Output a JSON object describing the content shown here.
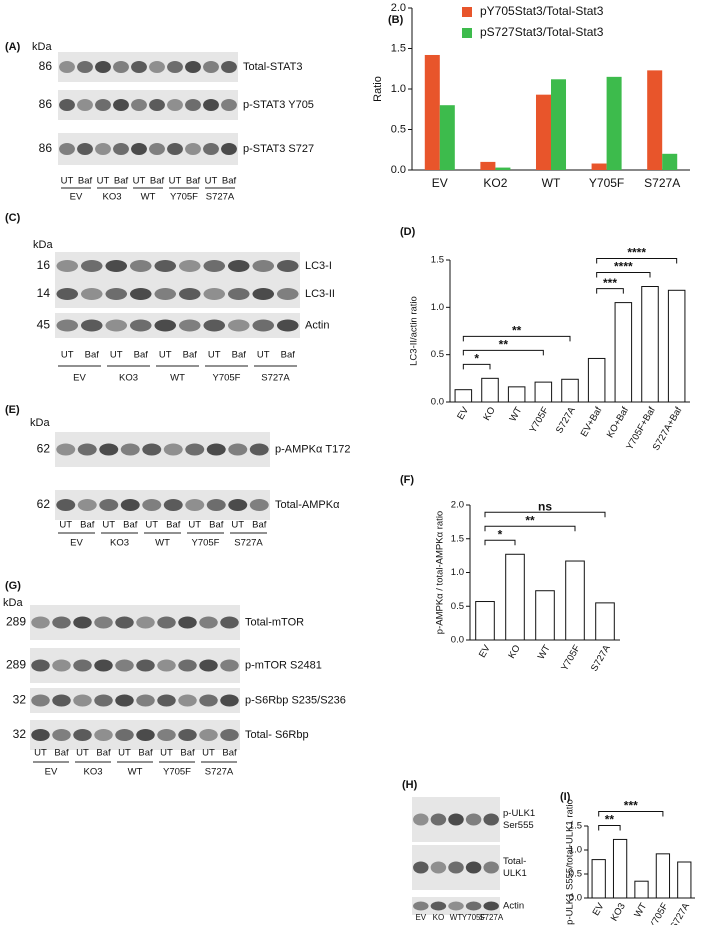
{
  "panels": {
    "A": {
      "letter": "(A)",
      "unit": "kDa",
      "rows": [
        {
          "mw": "86",
          "label": "Total-STAT3"
        },
        {
          "mw": "86",
          "label": "p-STAT3 Y705"
        },
        {
          "mw": "86",
          "label": "p-STAT3 S727"
        }
      ],
      "lanes": [
        "UT",
        "Baf"
      ],
      "groups": [
        "EV",
        "KO3",
        "WT",
        "Y705F",
        "S727A"
      ]
    },
    "C": {
      "letter": "(C)",
      "unit": "kDa",
      "rows": [
        {
          "mw": "16",
          "label": "LC3-I"
        },
        {
          "mw": "14",
          "label": "LC3-II"
        },
        {
          "mw": "45",
          "label": "Actin"
        }
      ],
      "lanes": [
        "UT",
        "Baf"
      ],
      "groups": [
        "EV",
        "KO3",
        "WT",
        "Y705F",
        "S727A"
      ]
    },
    "E": {
      "letter": "(E)",
      "unit": "kDa",
      "rows": [
        {
          "mw": "62",
          "label": "p-AMPKα T172"
        },
        {
          "mw": "62",
          "label": "Total-AMPKα"
        }
      ],
      "lanes": [
        "UT",
        "Baf"
      ],
      "groups": [
        "EV",
        "KO3",
        "WT",
        "Y705F",
        "S727A"
      ]
    },
    "G": {
      "letter": "(G)",
      "unit": "kDa",
      "rows": [
        {
          "mw": "289",
          "label": "Total-mTOR"
        },
        {
          "mw": "289",
          "label": "p-mTOR S2481"
        },
        {
          "mw": "32",
          "label": "p-S6Rbp S235/S236"
        },
        {
          "mw": "32",
          "label": "Total- S6Rbp"
        }
      ],
      "lanes": [
        "UT",
        "Baf"
      ],
      "groups": [
        "EV",
        "KO3",
        "WT",
        "Y705F",
        "S727A"
      ]
    },
    "H": {
      "letter": "(H)",
      "rows": [
        {
          "label": [
            "p-ULK1",
            "Ser555"
          ]
        },
        {
          "label": [
            "Total-",
            "ULK1"
          ]
        },
        {
          "label": [
            "Actin"
          ]
        }
      ],
      "lanes": [
        "EV",
        "KO",
        "WT",
        "Y705F",
        "S727A"
      ]
    }
  },
  "chart_data": [
    {
      "type": "grouped-bar",
      "letter": "(B)",
      "ylabel": "Ratio",
      "categories": [
        "EV",
        "KO2",
        "WT",
        "Y705F",
        "S727A"
      ],
      "series": [
        {
          "name": "pY705Stat3/Total-Stat3",
          "color": "#e8552b",
          "values": [
            1.42,
            0.1,
            0.93,
            0.08,
            1.23
          ]
        },
        {
          "name": "pS727Stat3/Total-Stat3",
          "color": "#3dbb4c",
          "values": [
            0.8,
            0.03,
            1.12,
            1.15,
            0.2
          ]
        }
      ],
      "ylim": [
        0,
        2
      ],
      "yticks": [
        {
          "value": 0,
          "label": "0.0"
        },
        {
          "value": 0.5,
          "label": "0.5"
        },
        {
          "value": 1,
          "label": "1.0"
        },
        {
          "value": 1.5,
          "label": "1.5"
        },
        {
          "value": 2,
          "label": "2.0"
        }
      ]
    },
    {
      "type": "bar",
      "letter": "(D)",
      "ylabel": "LC3-II/actin ratio",
      "color": "#ffffff",
      "categories": [
        "EV",
        "KO",
        "WT",
        "Y705F",
        "S727A",
        "EV+Baf",
        "KO+Baf",
        "Y705F+Baf",
        "S727A+Baf"
      ],
      "values": [
        0.13,
        0.25,
        0.16,
        0.21,
        0.24,
        0.46,
        1.05,
        1.22,
        1.18
      ],
      "ylim": [
        0,
        1.5
      ],
      "yticks": [
        {
          "value": 0,
          "label": "0.0"
        },
        {
          "value": 0.5,
          "label": "0.5"
        },
        {
          "value": 1,
          "label": "1.0"
        },
        {
          "value": 1.5,
          "label": "1.5"
        }
      ],
      "annotations": [
        {
          "label": "*",
          "between": [
            "EV",
            "KO"
          ]
        },
        {
          "label": "**",
          "between": [
            "EV",
            "Y705F"
          ]
        },
        {
          "label": "**",
          "between": [
            "EV",
            "S727A"
          ]
        },
        {
          "label": "***",
          "between": [
            "EV+Baf",
            "KO+Baf"
          ]
        },
        {
          "label": "****",
          "between": [
            "EV+Baf",
            "Y705F+Baf"
          ]
        },
        {
          "label": "****",
          "between": [
            "EV+Baf",
            "S727A+Baf"
          ]
        }
      ]
    },
    {
      "type": "bar",
      "letter": "(F)",
      "ylabel": "p-AMPKα / total-AMPKα ratio",
      "color": "#ffffff",
      "categories": [
        "EV",
        "KO",
        "WT",
        "Y705F",
        "S727A"
      ],
      "values": [
        0.57,
        1.27,
        0.73,
        1.17,
        0.55
      ],
      "ylim": [
        0,
        2
      ],
      "yticks": [
        {
          "value": 0,
          "label": "0.0"
        },
        {
          "value": 0.5,
          "label": "0.5"
        },
        {
          "value": 1,
          "label": "1.0"
        },
        {
          "value": 1.5,
          "label": "1.5"
        },
        {
          "value": 2,
          "label": "2.0"
        }
      ],
      "annotations": [
        {
          "label": "*",
          "between": [
            "EV",
            "KO"
          ]
        },
        {
          "label": "**",
          "between": [
            "EV",
            "Y705F"
          ]
        },
        {
          "label": "ns",
          "between": [
            "EV",
            "S727A"
          ]
        }
      ]
    },
    {
      "type": "bar",
      "letter": "(I)",
      "ylabel": "p-ULK1 S555/total-ULK1 ratio",
      "color": "#ffffff",
      "categories": [
        "EV",
        "KO3",
        "WT",
        "Y705F",
        "S727A"
      ],
      "values": [
        0.8,
        1.22,
        0.35,
        0.92,
        0.75
      ],
      "ylim": [
        0,
        1.5
      ],
      "yticks": [
        {
          "value": 0,
          "label": "0.0"
        },
        {
          "value": 0.5,
          "label": "0.5"
        },
        {
          "value": 1,
          "label": "1.0"
        },
        {
          "value": 1.5,
          "label": "1.5"
        }
      ],
      "annotations": [
        {
          "label": "**",
          "between": [
            "EV",
            "KO3"
          ]
        },
        {
          "label": "***",
          "between": [
            "EV",
            "Y705F"
          ]
        }
      ]
    }
  ]
}
